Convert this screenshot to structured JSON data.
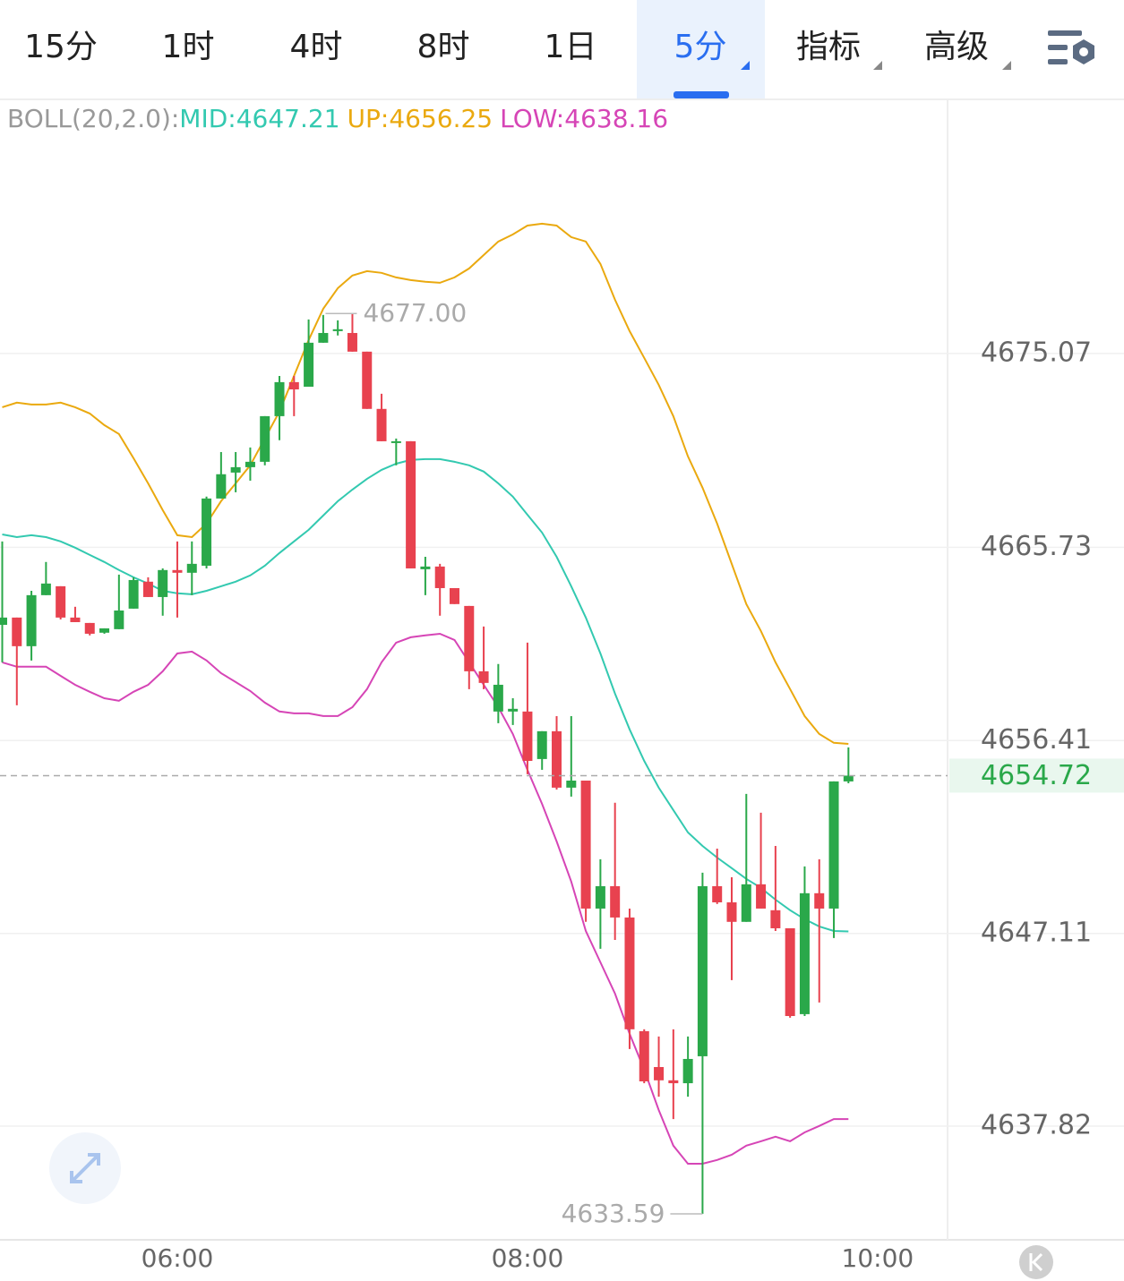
{
  "tabs": {
    "items": [
      "15分",
      "1时",
      "4时",
      "8时",
      "1日",
      "5分",
      "指标",
      "高级"
    ],
    "active": 5
  },
  "chart_data": {
    "type": "candlestick",
    "categories": [
      null,
      null,
      null,
      null,
      null,
      null,
      null,
      null,
      null,
      null,
      null,
      null,
      "06:00",
      null,
      null,
      null,
      null,
      null,
      null,
      null,
      null,
      null,
      null,
      null,
      null,
      null,
      null,
      null,
      null,
      null,
      null,
      null,
      null,
      null,
      null,
      null,
      "08:00",
      null,
      null,
      null,
      null,
      null,
      null,
      null,
      null,
      null,
      null,
      null,
      null,
      null,
      null,
      null,
      null,
      null,
      null,
      null,
      null,
      null,
      null,
      null,
      "10:00"
    ],
    "open": [
      4661.99,
      4662.34,
      4660.96,
      4663.42,
      4663.85,
      4662.34,
      4662.08,
      4661.61,
      4661.78,
      4662.77,
      4664.07,
      4663.33,
      4664.63,
      4664.5,
      4664.84,
      4668.08,
      4669.33,
      4669.59,
      4669.85,
      4672.05,
      4673.69,
      4673.47,
      4675.59,
      4676.15,
      4676.06,
      4675.16,
      4672.4,
      4670.76,
      4670.84,
      4664.67,
      4664.8,
      4663.76,
      4662.9,
      4659.75,
      4657.81,
      4657.81,
      4657.81,
      4655.52,
      4656.86,
      4654.14,
      4654.48,
      4648.31,
      4649.39,
      4647.88,
      4642.4,
      4640.67,
      4640.03,
      4639.89,
      4641.19,
      4649.39,
      4648.61,
      4647.67,
      4649.48,
      4648.23,
      4647.36,
      4643.22,
      4649.05,
      4648.31,
      4654.44,
      null,
      null
    ],
    "high": [
      4666.01,
      4662.34,
      4663.63,
      4665.02,
      4663.85,
      4662.86,
      4662.08,
      4661.82,
      4664.41,
      4664.28,
      4664.28,
      4664.71,
      4666.01,
      4666.01,
      4668.17,
      4670.32,
      4670.32,
      4670.54,
      4672.05,
      4673.99,
      4673.99,
      4676.71,
      4676.93,
      4676.67,
      4677,
      4675.16,
      4673.13,
      4670.97,
      4670.84,
      4665.27,
      4664.93,
      4663.76,
      4662.9,
      4661.91,
      4660.1,
      4658.45,
      4661.13,
      4656.86,
      4657.59,
      4657.59,
      4654.48,
      4650.69,
      4653.41,
      4648.31,
      4642.49,
      4642.14,
      4642.49,
      4642.14,
      4650.04,
      4651.2,
      4649.82,
      4653.84,
      4652.93,
      4651.33,
      4647.36,
      4650.34,
      4650.69,
      4654.44,
      4656.08,
      null,
      null
    ],
    "low": [
      4660.18,
      4658.11,
      4660.27,
      4663.42,
      4662.25,
      4662.12,
      4661.48,
      4661.56,
      4661.78,
      4662.77,
      4663.33,
      4662.43,
      4662.34,
      4663.42,
      4664.71,
      4668.08,
      4668.38,
      4668.94,
      4669.68,
      4670.89,
      4672.05,
      4673.47,
      4675.59,
      4675.94,
      4675.16,
      4672.4,
      4670.84,
      4669.68,
      4664.71,
      4663.42,
      4662.43,
      4662.99,
      4658.89,
      4658.89,
      4657.25,
      4657.16,
      4654.79,
      4655.0,
      4654.05,
      4653.71,
      4647.67,
      4646.37,
      4646.8,
      4641.54,
      4639.89,
      4639.24,
      4638.16,
      4639.24,
      4633.59,
      4648.53,
      4644.86,
      4647.67,
      4648.31,
      4647.23,
      4643.05,
      4643.13,
      4643.78,
      4646.89,
      4654.35,
      null,
      null
    ],
    "close": [
      4662.34,
      4660.96,
      4663.42,
      4663.98,
      4662.34,
      4662.12,
      4661.56,
      4661.82,
      4662.68,
      4664.15,
      4663.33,
      4664.63,
      4664.5,
      4664.93,
      4668.08,
      4669.25,
      4669.59,
      4669.85,
      4672.05,
      4673.69,
      4673.34,
      4675.59,
      4676.06,
      4676.24,
      4675.16,
      4672.4,
      4670.84,
      4670.84,
      4664.71,
      4664.8,
      4663.76,
      4662.99,
      4659.75,
      4659.19,
      4659.1,
      4657.94,
      4655.43,
      4656.86,
      4654.14,
      4654.48,
      4648.31,
      4649.39,
      4647.88,
      4642.49,
      4639.98,
      4640.03,
      4639.89,
      4641.06,
      4649.39,
      4648.61,
      4647.67,
      4649.48,
      4648.31,
      4647.36,
      4643.13,
      4649.05,
      4648.31,
      4654.44,
      4654.72,
      null,
      null
    ],
    "up_color": "#2aa84a",
    "down_color": "#e8424f",
    "high_value_label": "4677.00",
    "low_value_label": "4633.59",
    "indicator": {
      "name": "BOLL(20,2.0):",
      "series": [
        {
          "name": "MID:",
          "color": "#33c9b0",
          "values": [
            4666.35,
            4666.22,
            4666.31,
            4666.22,
            4666.01,
            4665.71,
            4665.36,
            4665.02,
            4664.63,
            4664.28,
            4663.98,
            4663.63,
            4663.51,
            4663.46,
            4663.63,
            4663.85,
            4664.07,
            4664.37,
            4664.84,
            4665.45,
            4666.01,
            4666.57,
            4667.26,
            4667.95,
            4668.51,
            4669.03,
            4669.46,
            4669.76,
            4669.94,
            4669.98,
            4669.98,
            4669.85,
            4669.68,
            4669.38,
            4668.81,
            4668.17,
            4667.3,
            4666.44,
            4665.27,
            4663.85,
            4662.34,
            4660.61,
            4658.67,
            4656.95,
            4655.43,
            4654.14,
            4653.06,
            4651.98,
            4651.33,
            4650.77,
            4650.26,
            4649.74,
            4649.31,
            4648.74,
            4648.23,
            4647.8,
            4647.45,
            4647.23,
            4647.21,
            null,
            null
          ]
        },
        {
          "name": "UP:",
          "color": "#eaa90f",
          "values": [
            4672.48,
            4672.7,
            4672.61,
            4672.61,
            4672.7,
            4672.48,
            4672.18,
            4671.62,
            4671.19,
            4670.02,
            4668.81,
            4667.52,
            4666.31,
            4666.22,
            4666.87,
            4667.95,
            4668.81,
            4669.68,
            4670.97,
            4672.27,
            4673.99,
            4675.72,
            4677.23,
            4678.22,
            4678.83,
            4679.04,
            4678.96,
            4678.74,
            4678.61,
            4678.53,
            4678.48,
            4678.74,
            4679.17,
            4679.82,
            4680.47,
            4680.81,
            4681.24,
            4681.33,
            4681.24,
            4680.68,
            4680.47,
            4679.39,
            4677.66,
            4676.15,
            4674.86,
            4673.56,
            4672.05,
            4670.11,
            4668.6,
            4666.87,
            4664.93,
            4662.99,
            4661.69,
            4660.18,
            4658.89,
            4657.59,
            4656.73,
            4656.3,
            4656.25,
            null,
            null
          ]
        },
        {
          "name": "LOW:",
          "color": "#d645b6",
          "values": [
            4660.18,
            4659.97,
            4659.97,
            4659.97,
            4659.53,
            4659.1,
            4658.76,
            4658.45,
            4658.33,
            4658.76,
            4659.1,
            4659.75,
            4660.61,
            4660.7,
            4660.27,
            4659.66,
            4659.23,
            4658.8,
            4658.24,
            4657.81,
            4657.72,
            4657.72,
            4657.59,
            4657.59,
            4658.02,
            4658.89,
            4660.18,
            4661.13,
            4661.39,
            4661.48,
            4661.56,
            4661.26,
            4660.18,
            4659.1,
            4658.02,
            4656.73,
            4655.0,
            4653.36,
            4651.55,
            4649.61,
            4647.23,
            4645.72,
            4644.21,
            4642.27,
            4640.54,
            4638.6,
            4636.88,
            4636.01,
            4636.01,
            4636.19,
            4636.44,
            4636.88,
            4637.09,
            4637.31,
            4637.09,
            4637.52,
            4637.83,
            4638.16,
            4638.16,
            null,
            null
          ]
        }
      ]
    },
    "ylim": [
      4632.34,
      4687.28
    ],
    "yticks": [
      4637.82,
      4647.11,
      4656.41,
      4665.73,
      4675.07
    ],
    "grid": true
  }
}
